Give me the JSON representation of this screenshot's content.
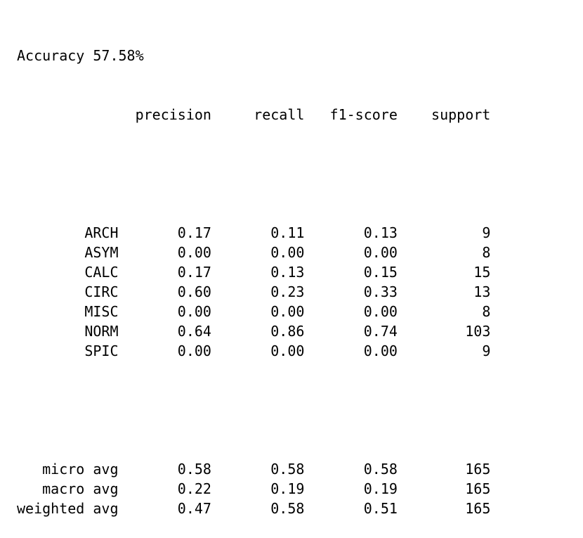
{
  "accuracy_line": "Accuracy 57.58%",
  "columns": [
    "precision",
    "recall",
    "f1-score",
    "support"
  ],
  "classes": [
    {
      "label": "ARCH",
      "precision": "0.17",
      "recall": "0.11",
      "f1": "0.13",
      "support": "9"
    },
    {
      "label": "ASYM",
      "precision": "0.00",
      "recall": "0.00",
      "f1": "0.00",
      "support": "8"
    },
    {
      "label": "CALC",
      "precision": "0.17",
      "recall": "0.13",
      "f1": "0.15",
      "support": "15"
    },
    {
      "label": "CIRC",
      "precision": "0.60",
      "recall": "0.23",
      "f1": "0.33",
      "support": "13"
    },
    {
      "label": "MISC",
      "precision": "0.00",
      "recall": "0.00",
      "f1": "0.00",
      "support": "8"
    },
    {
      "label": "NORM",
      "precision": "0.64",
      "recall": "0.86",
      "f1": "0.74",
      "support": "103"
    },
    {
      "label": "SPIC",
      "precision": "0.00",
      "recall": "0.00",
      "f1": "0.00",
      "support": "9"
    }
  ],
  "averages": [
    {
      "label": "micro avg",
      "precision": "0.58",
      "recall": "0.58",
      "f1": "0.58",
      "support": "165"
    },
    {
      "label": "macro avg",
      "precision": "0.22",
      "recall": "0.19",
      "f1": "0.19",
      "support": "165"
    },
    {
      "label": "weighted avg",
      "precision": "0.47",
      "recall": "0.58",
      "f1": "0.51",
      "support": "165"
    }
  ]
}
